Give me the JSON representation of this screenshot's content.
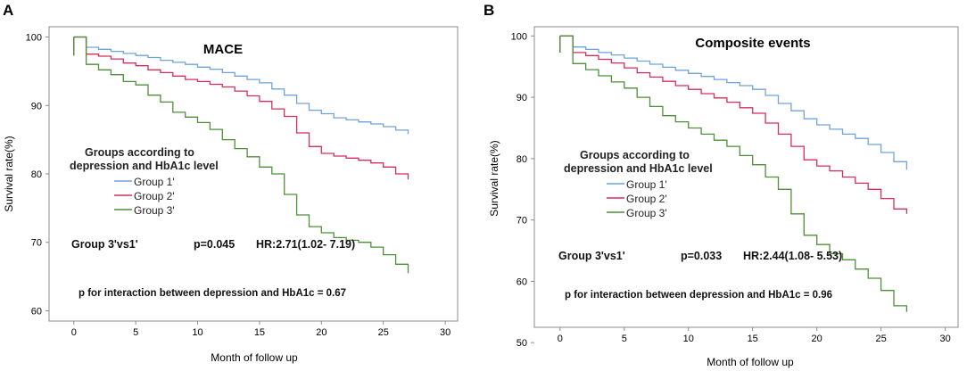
{
  "chart_data": [
    {
      "type": "line",
      "panel_label": "A",
      "title": "MACE",
      "xlabel": "Month of follow up",
      "ylabel": "Survival rate(%)",
      "xlim": [
        -2,
        31
      ],
      "ylim": [
        58.5,
        101.5
      ],
      "xticks": [
        0,
        5,
        10,
        15,
        20,
        25,
        30
      ],
      "yticks": [
        60,
        70,
        80,
        90,
        100
      ],
      "legend": {
        "title_line1": "Groups according to",
        "title_line2": "depression and HbA1c level"
      },
      "series": [
        {
          "name": "Group 1'",
          "color": "#6fa3dc",
          "x": [
            0,
            1,
            1,
            2,
            3,
            4,
            5,
            6,
            7,
            8,
            9,
            10,
            11,
            12,
            13,
            14,
            15,
            16,
            17,
            18,
            19,
            20,
            21,
            22,
            23,
            24,
            25,
            26,
            27
          ],
          "y": [
            100,
            100,
            98.5,
            98.2,
            97.9,
            97.6,
            97.3,
            97.0,
            96.6,
            96.3,
            96.0,
            95.6,
            95.3,
            94.8,
            94.3,
            93.8,
            93.3,
            92.4,
            91.5,
            90.3,
            89.3,
            88.8,
            88.2,
            87.9,
            87.6,
            87.3,
            86.9,
            86.4,
            85.8
          ]
        },
        {
          "name": "Group 2'",
          "color": "#d62e5a",
          "x": [
            0,
            1,
            1,
            2,
            3,
            4,
            5,
            6,
            7,
            8,
            9,
            10,
            11,
            12,
            13,
            14,
            15,
            16,
            17,
            18,
            19,
            20,
            21,
            22,
            23,
            24,
            25,
            26,
            27
          ],
          "y": [
            100,
            100,
            97.5,
            97.2,
            96.8,
            96.2,
            95.8,
            95.2,
            94.8,
            94.3,
            93.8,
            93.5,
            93.1,
            92.7,
            92.1,
            91.4,
            90.6,
            89.5,
            88.4,
            86.0,
            84.0,
            83.0,
            82.6,
            82.3,
            82.0,
            81.6,
            81.0,
            80.0,
            79.2
          ]
        },
        {
          "name": "Group 3'",
          "color": "#4e8f3a",
          "x": [
            0,
            1,
            1,
            2,
            3,
            4,
            5,
            6,
            7,
            8,
            9,
            10,
            11,
            12,
            13,
            14,
            15,
            16,
            17,
            18,
            19,
            20,
            21,
            22,
            23,
            24,
            25,
            26,
            27
          ],
          "y": [
            100,
            100,
            96.0,
            95.2,
            94.5,
            93.5,
            93.0,
            91.5,
            90.5,
            89.0,
            88.3,
            87.5,
            86.5,
            85.0,
            83.7,
            82.5,
            81.0,
            80.0,
            77.0,
            74.0,
            72.3,
            71.4,
            70.7,
            70.3,
            70.0,
            69.3,
            68.2,
            66.8,
            65.5
          ]
        }
      ],
      "annotations": {
        "comparison": "Group 3'vs1'",
        "p_value": "p=0.045",
        "hr": "HR:2.71(1.02- 7.19)",
        "interaction": "p for interaction between depression and HbA1c = 0.67"
      }
    },
    {
      "type": "line",
      "panel_label": "B",
      "title": "Composite events",
      "xlabel": "Month of follow up",
      "ylabel": "Survival rate(%)",
      "xlim": [
        -2,
        31
      ],
      "ylim": [
        52.5,
        101.5
      ],
      "xticks": [
        0,
        5,
        10,
        15,
        20,
        25,
        30
      ],
      "yticks": [
        50,
        60,
        70,
        80,
        90,
        100
      ],
      "legend": {
        "title_line1": "Groups according to",
        "title_line2": "depression and HbA1c level"
      },
      "series": [
        {
          "name": "Group 1'",
          "color": "#6fa3dc",
          "x": [
            0,
            1,
            1,
            2,
            3,
            4,
            5,
            6,
            7,
            8,
            9,
            10,
            11,
            12,
            13,
            14,
            15,
            16,
            17,
            18,
            19,
            20,
            21,
            22,
            23,
            24,
            25,
            26,
            27
          ],
          "y": [
            100,
            100,
            98.2,
            97.8,
            97.3,
            96.9,
            96.4,
            95.9,
            95.4,
            94.9,
            94.4,
            93.9,
            93.4,
            92.9,
            92.4,
            91.9,
            91.3,
            90.3,
            89.0,
            87.8,
            86.5,
            85.5,
            84.8,
            84.0,
            83.3,
            82.3,
            81.0,
            79.5,
            78.2
          ]
        },
        {
          "name": "Group 2'",
          "color": "#d62e5a",
          "x": [
            0,
            1,
            1,
            2,
            3,
            4,
            5,
            6,
            7,
            8,
            9,
            10,
            11,
            12,
            13,
            14,
            15,
            16,
            17,
            18,
            19,
            20,
            21,
            22,
            23,
            24,
            25,
            26,
            27
          ],
          "y": [
            100,
            100,
            97.3,
            96.8,
            96.2,
            95.6,
            94.8,
            94.0,
            93.3,
            92.6,
            91.9,
            91.3,
            90.6,
            89.9,
            89.2,
            88.3,
            87.4,
            85.8,
            84.0,
            82.0,
            79.8,
            78.8,
            78.0,
            77.0,
            76.0,
            75.0,
            73.5,
            71.8,
            71.0
          ]
        },
        {
          "name": "Group 3'",
          "color": "#4e8f3a",
          "x": [
            0,
            1,
            1,
            2,
            3,
            4,
            5,
            6,
            7,
            8,
            9,
            10,
            11,
            12,
            13,
            14,
            15,
            16,
            17,
            18,
            19,
            20,
            21,
            22,
            23,
            24,
            25,
            26,
            27
          ],
          "y": [
            100,
            100,
            95.5,
            94.5,
            93.5,
            92.5,
            91.5,
            90.0,
            88.5,
            87.0,
            86.0,
            85.0,
            84.0,
            83.0,
            82.0,
            80.5,
            79.0,
            77.0,
            75.0,
            71.0,
            67.5,
            66.0,
            64.5,
            63.5,
            62.0,
            60.5,
            58.5,
            56.0,
            55.0
          ]
        }
      ],
      "annotations": {
        "comparison": "Group 3'vs1'",
        "p_value": "p=0.033",
        "hr": "HR:2.44(1.08- 5.53)",
        "interaction": "p for interaction between depression and HbA1c = 0.96"
      }
    }
  ]
}
